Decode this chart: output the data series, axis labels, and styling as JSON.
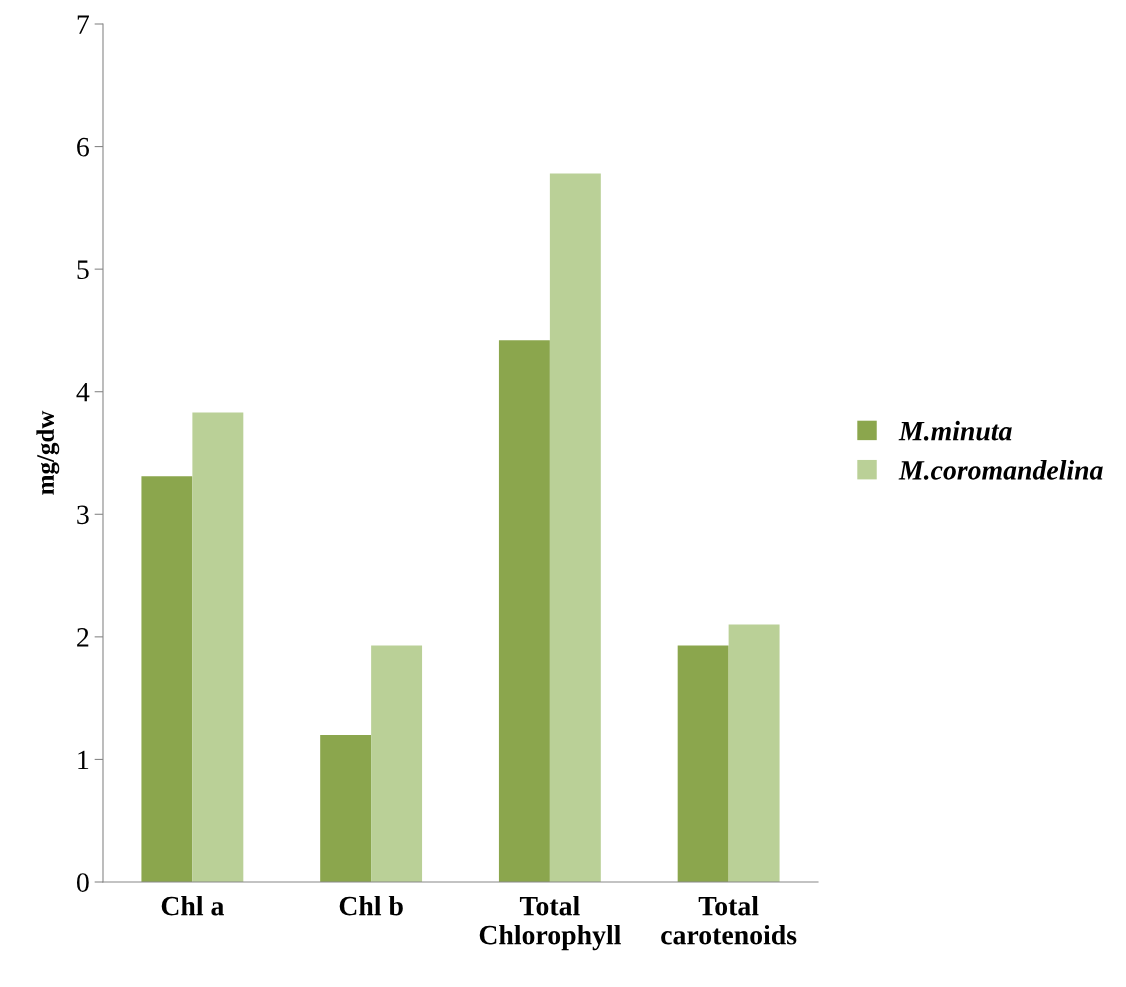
{
  "chart_data": {
    "type": "bar",
    "ylabel": "mg/gdw",
    "categories": [
      "Chl a",
      "Chl b",
      "Total\nChlorophyll",
      "Total\ncarotenoids"
    ],
    "series": [
      {
        "name": "M.minuta",
        "color": "#8ba64d",
        "values": [
          3.31,
          1.2,
          4.42,
          1.93
        ]
      },
      {
        "name": "M.coromandelina",
        "color": "#bad097",
        "values": [
          3.83,
          1.93,
          5.78,
          2.1
        ]
      }
    ],
    "ylim": [
      0,
      7
    ],
    "yticks": [
      0,
      1,
      2,
      3,
      4,
      5,
      6,
      7
    ],
    "grid": false,
    "legend": "right"
  }
}
